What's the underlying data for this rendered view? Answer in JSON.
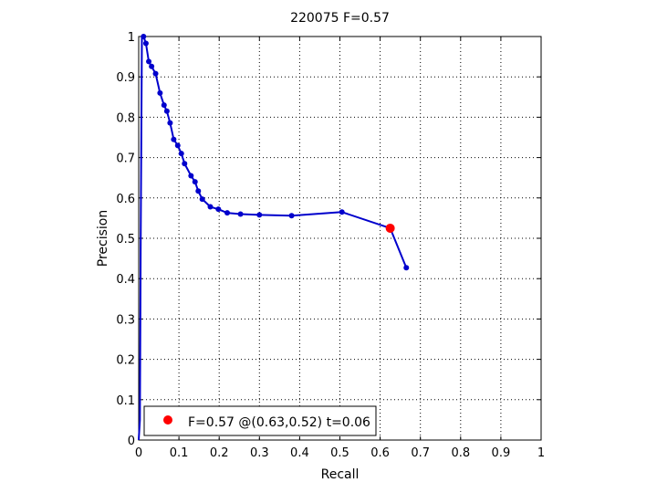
{
  "chart_data": {
    "type": "line",
    "title": "220075 F=0.57",
    "xlabel": "Recall",
    "ylabel": "Precision",
    "xlim": [
      0,
      1
    ],
    "ylim": [
      0,
      1
    ],
    "xticks": [
      "0",
      "0.1",
      "0.2",
      "0.3",
      "0.4",
      "0.5",
      "0.6",
      "0.7",
      "0.8",
      "0.9",
      "1"
    ],
    "yticks": [
      "0",
      "0.1",
      "0.2",
      "0.3",
      "0.4",
      "0.5",
      "0.6",
      "0.7",
      "0.8",
      "0.9",
      "1"
    ],
    "grid": true,
    "legend_position": "bottom-left",
    "series": [
      {
        "color": "#0000cc",
        "x": [
          0.0,
          0.003,
          0.005,
          0.008,
          0.012,
          0.018,
          0.025,
          0.032,
          0.042,
          0.053,
          0.063,
          0.07,
          0.078,
          0.087,
          0.097,
          0.106,
          0.114,
          0.13,
          0.14,
          0.148,
          0.158,
          0.178,
          0.198,
          0.22,
          0.253,
          0.3,
          0.38,
          0.505,
          0.625,
          0.665
        ],
        "y": [
          0.0,
          0.05,
          0.5,
          1.0,
          1.0,
          0.983,
          0.938,
          0.926,
          0.908,
          0.86,
          0.83,
          0.815,
          0.786,
          0.745,
          0.73,
          0.71,
          0.685,
          0.655,
          0.64,
          0.617,
          0.597,
          0.578,
          0.572,
          0.563,
          0.56,
          0.558,
          0.556,
          0.565,
          0.525,
          0.427
        ],
        "markers": [
          false,
          false,
          false,
          false,
          true,
          true,
          true,
          true,
          true,
          true,
          true,
          true,
          true,
          true,
          true,
          true,
          true,
          true,
          true,
          true,
          true,
          true,
          true,
          true,
          true,
          true,
          true,
          true,
          false,
          true
        ]
      }
    ],
    "highlight_point": {
      "x": 0.625,
      "y": 0.525,
      "color": "#ff0000"
    },
    "legend": {
      "label": "F=0.57 @(0.63,0.52) t=0.06",
      "color": "#ff0000"
    }
  }
}
